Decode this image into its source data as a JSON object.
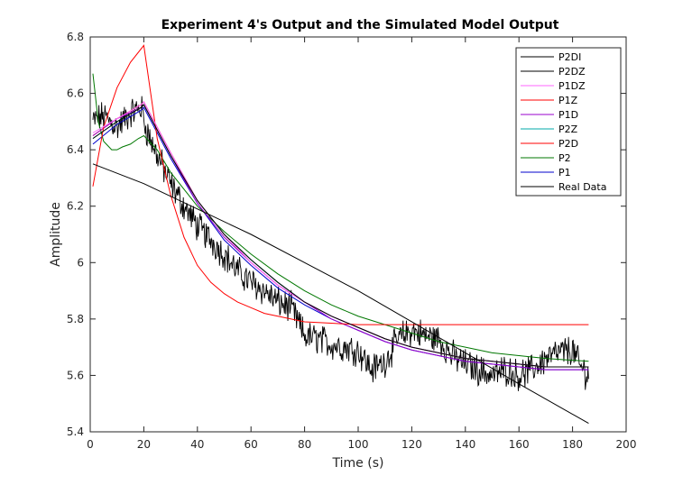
{
  "chart_data": {
    "type": "line",
    "title": "Experiment 4's Output and the Simulated Model Output",
    "xlabel": "Time (s)",
    "ylabel": "Amplitude",
    "xlim": [
      0,
      200
    ],
    "ylim": [
      5.4,
      6.8
    ],
    "xticks": [
      0,
      20,
      40,
      60,
      80,
      100,
      120,
      140,
      160,
      180,
      200
    ],
    "yticks": [
      5.4,
      5.6,
      5.8,
      6.0,
      6.2,
      6.4,
      6.6,
      6.8
    ],
    "xtick_labels": [
      "0",
      "20",
      "40",
      "60",
      "80",
      "100",
      "120",
      "140",
      "160",
      "180",
      "200"
    ],
    "ytick_labels": [
      "5.4",
      "5.6",
      "5.8",
      "6",
      "6.2",
      "6.4",
      "6.6",
      "6.8"
    ],
    "grid": false,
    "legend_position": "top-right",
    "series": [
      {
        "name": "P2DI",
        "color": "#000000",
        "x": [
          1,
          20,
          40,
          60,
          80,
          100,
          120,
          140,
          160,
          186
        ],
        "y": [
          6.35,
          6.28,
          6.19,
          6.1,
          6.0,
          5.9,
          5.79,
          5.68,
          5.57,
          5.43
        ]
      },
      {
        "name": "P2DZ",
        "color": "#000000",
        "x": [
          1,
          10,
          19,
          20,
          30,
          40,
          50,
          60,
          70,
          80,
          90,
          100,
          110,
          120,
          130,
          140,
          150,
          160,
          170,
          186
        ],
        "y": [
          6.44,
          6.5,
          6.55,
          6.56,
          6.38,
          6.22,
          6.1,
          6.01,
          5.93,
          5.86,
          5.81,
          5.77,
          5.73,
          5.7,
          5.68,
          5.66,
          5.65,
          5.64,
          5.63,
          5.63
        ]
      },
      {
        "name": "P1DZ",
        "color": "#ff66ff",
        "x": [
          1,
          10,
          19,
          20,
          30,
          40,
          50,
          60,
          70,
          80,
          90,
          100,
          110,
          120,
          130,
          140,
          150,
          160,
          170,
          186
        ],
        "y": [
          6.46,
          6.51,
          6.56,
          6.57,
          6.39,
          6.22,
          6.1,
          6.0,
          5.92,
          5.86,
          5.81,
          5.77,
          5.73,
          5.7,
          5.68,
          5.66,
          5.65,
          5.64,
          5.63,
          5.63
        ]
      },
      {
        "name": "P1Z",
        "color": "#ff0000",
        "x": [
          1,
          5,
          10,
          15,
          20,
          25,
          30,
          35,
          40,
          45,
          50,
          55,
          60,
          65,
          70,
          75,
          80,
          90,
          100,
          120,
          140,
          160,
          186
        ],
        "y": [
          6.27,
          6.48,
          6.62,
          6.71,
          6.77,
          6.44,
          6.24,
          6.09,
          5.99,
          5.93,
          5.89,
          5.86,
          5.84,
          5.82,
          5.81,
          5.8,
          5.79,
          5.785,
          5.78,
          5.78,
          5.78,
          5.78,
          5.78
        ]
      },
      {
        "name": "P1D",
        "color": "#9900cc",
        "x": [
          1,
          10,
          19,
          20,
          30,
          40,
          50,
          60,
          70,
          80,
          90,
          100,
          110,
          120,
          130,
          140,
          150,
          160,
          170,
          186
        ],
        "y": [
          6.45,
          6.51,
          6.55,
          6.56,
          6.38,
          6.21,
          6.09,
          6.0,
          5.92,
          5.86,
          5.8,
          5.76,
          5.72,
          5.69,
          5.67,
          5.65,
          5.64,
          5.63,
          5.62,
          5.62
        ]
      },
      {
        "name": "P2Z",
        "color": "#00aaaa",
        "x": [
          1,
          10,
          19,
          20,
          30,
          40,
          50,
          60,
          70,
          80,
          90,
          100,
          110,
          120,
          130,
          140,
          150,
          160,
          170,
          186
        ],
        "y": [
          6.44,
          6.5,
          6.55,
          6.56,
          6.38,
          6.22,
          6.1,
          6.01,
          5.93,
          5.86,
          5.81,
          5.77,
          5.73,
          5.7,
          5.68,
          5.66,
          5.65,
          5.64,
          5.63,
          5.63
        ]
      },
      {
        "name": "P2D",
        "color": "#ff0000",
        "x": [
          1,
          10,
          19,
          20,
          30,
          40,
          50,
          60,
          70,
          80,
          90,
          100,
          110,
          120,
          130,
          140,
          150,
          160,
          170,
          186
        ],
        "y": [
          6.45,
          6.51,
          6.56,
          6.57,
          6.39,
          6.22,
          6.1,
          6.0,
          5.92,
          5.86,
          5.81,
          5.77,
          5.73,
          5.7,
          5.68,
          5.66,
          5.65,
          5.64,
          5.63,
          5.63
        ]
      },
      {
        "name": "P2",
        "color": "#007700",
        "x": [
          1,
          3,
          5,
          8,
          10,
          12,
          15,
          18,
          20,
          25,
          30,
          40,
          50,
          60,
          70,
          80,
          90,
          100,
          110,
          120,
          130,
          140,
          150,
          160,
          170,
          186
        ],
        "y": [
          6.67,
          6.5,
          6.43,
          6.4,
          6.4,
          6.41,
          6.42,
          6.44,
          6.45,
          6.4,
          6.32,
          6.2,
          6.11,
          6.03,
          5.96,
          5.9,
          5.85,
          5.81,
          5.78,
          5.75,
          5.72,
          5.7,
          5.68,
          5.67,
          5.66,
          5.65
        ]
      },
      {
        "name": "P1",
        "color": "#0000cc",
        "x": [
          1,
          10,
          19,
          20,
          30,
          40,
          50,
          60,
          70,
          80,
          90,
          100,
          110,
          120,
          130,
          140,
          150,
          160,
          170,
          186
        ],
        "y": [
          6.42,
          6.49,
          6.54,
          6.55,
          6.37,
          6.21,
          6.08,
          5.99,
          5.91,
          5.85,
          5.8,
          5.76,
          5.72,
          5.69,
          5.67,
          5.65,
          5.64,
          5.63,
          5.62,
          5.62
        ]
      },
      {
        "name": "Real Data",
        "color": "#000000",
        "x": [
          1,
          5,
          10,
          15,
          19,
          21,
          25,
          30,
          35,
          40,
          45,
          50,
          55,
          60,
          65,
          70,
          75,
          80,
          85,
          90,
          95,
          100,
          105,
          110,
          115,
          120,
          125,
          130,
          135,
          140,
          145,
          150,
          155,
          160,
          165,
          170,
          175,
          180,
          183,
          186
        ],
        "y": [
          6.5,
          6.52,
          6.48,
          6.53,
          6.55,
          6.47,
          6.38,
          6.28,
          6.2,
          6.13,
          6.08,
          6.03,
          5.97,
          5.93,
          5.9,
          5.86,
          5.84,
          5.74,
          5.73,
          5.71,
          5.7,
          5.69,
          5.62,
          5.65,
          5.73,
          5.76,
          5.74,
          5.73,
          5.67,
          5.64,
          5.62,
          5.6,
          5.62,
          5.6,
          5.62,
          5.66,
          5.68,
          5.69,
          5.63,
          5.6
        ],
        "noisy": true
      }
    ]
  }
}
